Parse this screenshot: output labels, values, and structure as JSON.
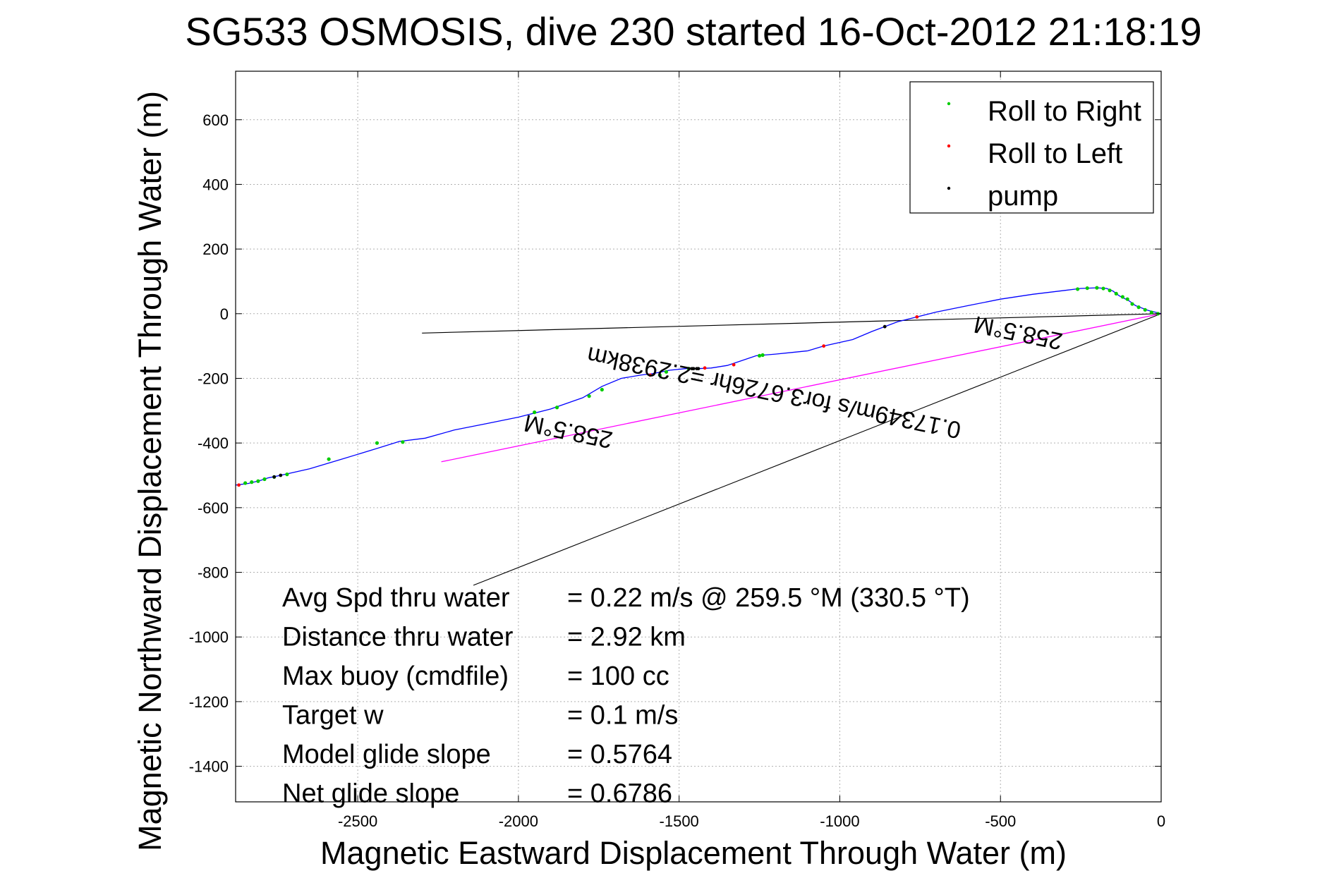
{
  "chart_data": {
    "type": "line",
    "title": "SG533 OSMOSIS, dive 230 started 16-Oct-2012 21:18:19",
    "xlabel": "Magnetic Eastward Displacement Through Water (m)",
    "ylabel": "Magnetic Northward Displacement Through Water (m)",
    "xlim": [
      -2880,
      0
    ],
    "ylim": [
      -1510,
      750
    ],
    "xticks": [
      -2500,
      -2000,
      -1500,
      -1000,
      -500,
      0
    ],
    "yticks": [
      600,
      400,
      200,
      0,
      -200,
      -400,
      -600,
      -800,
      -1000,
      -1200,
      -1400
    ],
    "grid": true,
    "legend_position": "top-right",
    "legend": [
      {
        "label": "Roll to Right",
        "color": "#00cc00"
      },
      {
        "label": "Roll to Left",
        "color": "#ff0000"
      },
      {
        "label": "pump",
        "color": "#000000"
      }
    ],
    "track": {
      "name": "track",
      "color": "#0000ff",
      "x": [
        0,
        -40,
        -80,
        -100,
        -130,
        -150,
        -170,
        -200,
        -250,
        -300,
        -400,
        -500,
        -600,
        -700,
        -760,
        -820,
        -860,
        -900,
        -960,
        -1050,
        -1100,
        -1150,
        -1200,
        -1260,
        -1320,
        -1350,
        -1400,
        -1440,
        -1480,
        -1530,
        -1580,
        -1620,
        -1680,
        -1740,
        -1800,
        -1900,
        -1960,
        -2000,
        -2100,
        -2200,
        -2290,
        -2370,
        -2450,
        -2550,
        -2650,
        -2740,
        -2780,
        -2800,
        -2820,
        -2840,
        -2880
      ],
      "y": [
        0,
        10,
        25,
        40,
        55,
        70,
        78,
        80,
        78,
        72,
        60,
        45,
        25,
        5,
        -10,
        -25,
        -40,
        -55,
        -80,
        -100,
        -115,
        -120,
        -125,
        -130,
        -150,
        -160,
        -168,
        -170,
        -170,
        -175,
        -185,
        -190,
        -200,
        -225,
        -260,
        -295,
        -310,
        -320,
        -340,
        -360,
        -385,
        -395,
        -420,
        -450,
        -480,
        -500,
        -508,
        -515,
        -520,
        -525,
        -530
      ]
    },
    "roll_right": {
      "x": [
        -10,
        -30,
        -50,
        -70,
        -90,
        -105,
        -120,
        -140,
        -160,
        -180,
        -200,
        -230,
        -260,
        -1240,
        -1250,
        -1470,
        -1540,
        -1560,
        -1740,
        -1780,
        -1880,
        -1950,
        -2360,
        -2440,
        -2590,
        -2720,
        -2760,
        -2790,
        -2810,
        -2830,
        -2850
      ],
      "y": [
        0,
        4,
        12,
        20,
        30,
        45,
        52,
        62,
        72,
        78,
        80,
        79,
        76,
        -128,
        -130,
        -170,
        -180,
        -190,
        -235,
        -255,
        -290,
        -305,
        -397,
        -400,
        -450,
        -497,
        -505,
        -512,
        -518,
        -521,
        -524
      ]
    },
    "roll_left": {
      "x": [
        -760,
        -1050,
        -1330,
        -1420,
        -1590,
        -2870
      ],
      "y": [
        -10,
        -100,
        -158,
        -168,
        -190,
        -530
      ]
    },
    "pump": {
      "x": [
        -860,
        -1440,
        -1445,
        -1455,
        -1460,
        -2760,
        -2740
      ],
      "y": [
        -40,
        -170,
        -170,
        -170,
        -170,
        -505,
        -500
      ]
    },
    "current_line": {
      "color": "#ff00ff",
      "x": [
        0,
        -2240
      ],
      "y": [
        0,
        -458
      ]
    },
    "heading_line": {
      "color": "#000000",
      "x": [
        0,
        -2300
      ],
      "y": [
        0,
        -60
      ]
    },
    "leader_line": {
      "color": "#000000",
      "x": [
        0,
        -2140
      ],
      "y": [
        0,
        -840
      ]
    },
    "annotations": [
      {
        "text": "258.5°M",
        "x": -1840,
        "y": -340,
        "rotation": 191.5
      },
      {
        "text": "0.17349m/s for3.6726hr =2.2938km",
        "x": -1200,
        "y": -220,
        "rotation": 191.5
      },
      {
        "text": "258.5°M",
        "x": -440,
        "y": -35,
        "rotation": 191.5
      }
    ],
    "info": [
      {
        "label": "Avg Spd thru water",
        "value": "=  0.22 m/s @ 259.5 °M (330.5 °T)"
      },
      {
        "label": "Distance thru water",
        "value": "=  2.92 km"
      },
      {
        "label": "Max buoy (cmdfile)",
        "value": "= 100 cc"
      },
      {
        "label": "Target w",
        "value": "= 0.1 m/s"
      },
      {
        "label": "Model glide slope",
        "value": "= 0.5764"
      },
      {
        "label": "Net glide slope",
        "value": "= 0.6786"
      }
    ]
  }
}
